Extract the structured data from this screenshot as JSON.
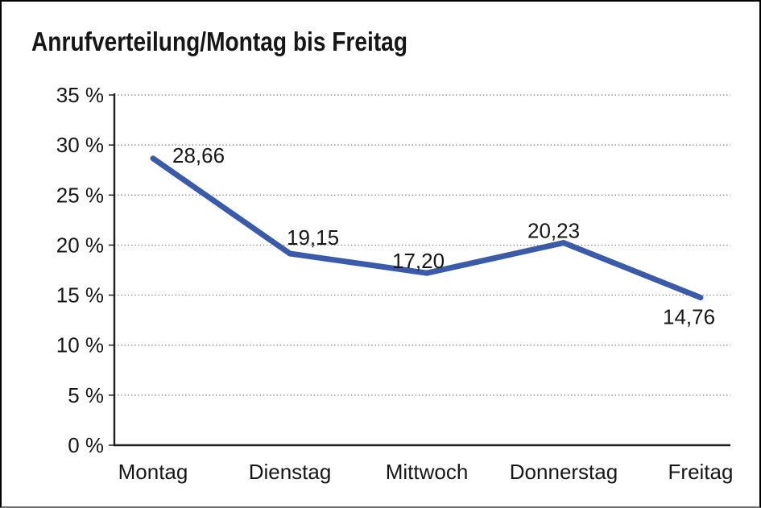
{
  "title": "Anrufverteilung/Montag bis Freitag",
  "chart_data": {
    "type": "line",
    "title": "Anrufverteilung/Montag bis Freitag",
    "categories": [
      "Montag",
      "Dienstag",
      "Mittwoch",
      "Donnerstag",
      "Freitag"
    ],
    "series": [
      {
        "name": "Anrufverteilung",
        "values": [
          28.66,
          19.15,
          17.2,
          20.23,
          14.76
        ],
        "labels": [
          "28,66",
          "19,15",
          "17,20",
          "20,23",
          "14,76"
        ],
        "color": "#3A5BA9"
      }
    ],
    "xlabel": "",
    "ylabel": "",
    "ylim": [
      0,
      35
    ],
    "ytick_step": 5,
    "ytick_labels": [
      "0 %",
      "5 %",
      "10 %",
      "15 %",
      "20 %",
      "25 %",
      "30 %",
      "35 %"
    ],
    "grid": "horizontal-dotted",
    "legend_position": "none",
    "markers": false
  },
  "colors": {
    "line": "#3A5BA9",
    "axis": "#1f1f1f",
    "gridline": "#7a7a7a",
    "text": "#161616",
    "title_text": "#111111",
    "background": "#ffffff"
  }
}
